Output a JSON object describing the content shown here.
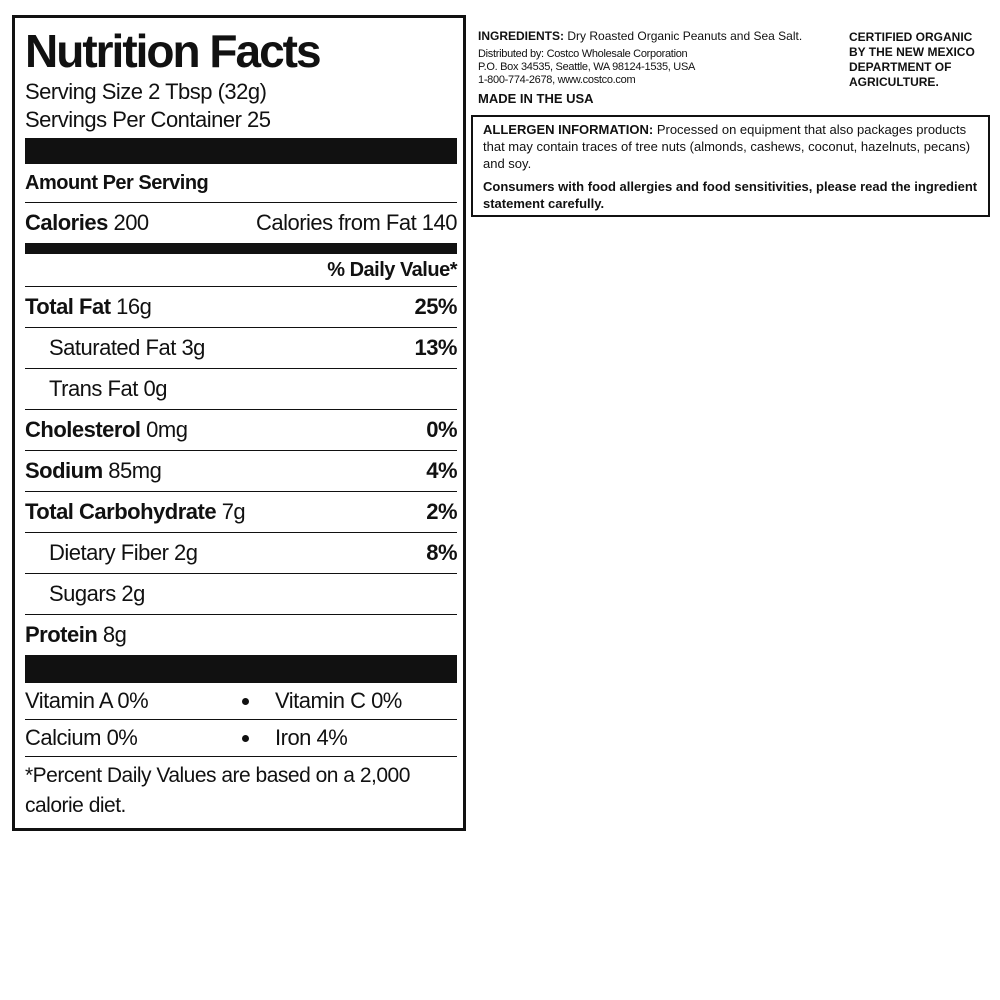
{
  "nutrition_facts": {
    "title": "Nutrition Facts",
    "serving_size": "Serving Size 2 Tbsp (32g)",
    "servings_per_container": "Servings Per Container 25",
    "amount_per_serving": "Amount Per Serving",
    "calories": {
      "label": "Calories",
      "amount": "200"
    },
    "calories_from_fat": "Calories from Fat 140",
    "daily_value_header": "% Daily Value*",
    "nutrients": [
      {
        "label": "Total Fat",
        "amount": "16g",
        "dv": "25%",
        "bold": true
      },
      {
        "label": "Saturated Fat",
        "amount": "3g",
        "dv": "13%",
        "bold": false
      },
      {
        "label": "Trans Fat",
        "amount": "0g",
        "bold": false
      },
      {
        "label": "Cholesterol",
        "amount": "0mg",
        "dv": "0%",
        "bold": true
      },
      {
        "label": "Sodium",
        "amount": "85mg",
        "dv": "4%",
        "bold": true
      },
      {
        "label": "Total Carbohydrate",
        "amount": "7g",
        "dv": "2%",
        "bold": true
      },
      {
        "label": "Dietary Fiber",
        "amount": "2g",
        "dv": "8%",
        "bold": false
      },
      {
        "label": "Sugars",
        "amount": "2g",
        "bold": false
      },
      {
        "label": "Protein",
        "amount": "8g",
        "bold": true
      }
    ],
    "vitamins": [
      [
        "Vitamin A 0%",
        "Vitamin C 0%"
      ],
      [
        "Calcium 0%",
        "Iron 4%"
      ]
    ],
    "footnote": "*Percent Daily Values are based on a 2,000 calorie diet."
  },
  "ingredients": {
    "label": "INGREDIENTS:",
    "text": "Dry Roasted Organic Peanuts and Sea Salt."
  },
  "distributor": [
    "Distributed by: Costco Wholesale Corporation",
    "P.O. Box 34535, Seattle, WA 98124-1535, USA",
    "1-800-774-2678, www.costco.com"
  ],
  "made_in": "MADE IN THE USA",
  "certification": [
    "CERTIFIED ORGANIC",
    "BY THE NEW MEXICO",
    "DEPARTMENT OF",
    "AGRICULTURE."
  ],
  "allergen": {
    "label": "ALLERGEN INFORMATION:",
    "text": "Processed on equipment that also packages products that may contain traces of tree nuts (almonds, cashews, coconut, hazelnuts, pecans) and soy.",
    "warning": "Consumers with food allergies and food sensitivities, please read the ingredient statement carefully."
  }
}
